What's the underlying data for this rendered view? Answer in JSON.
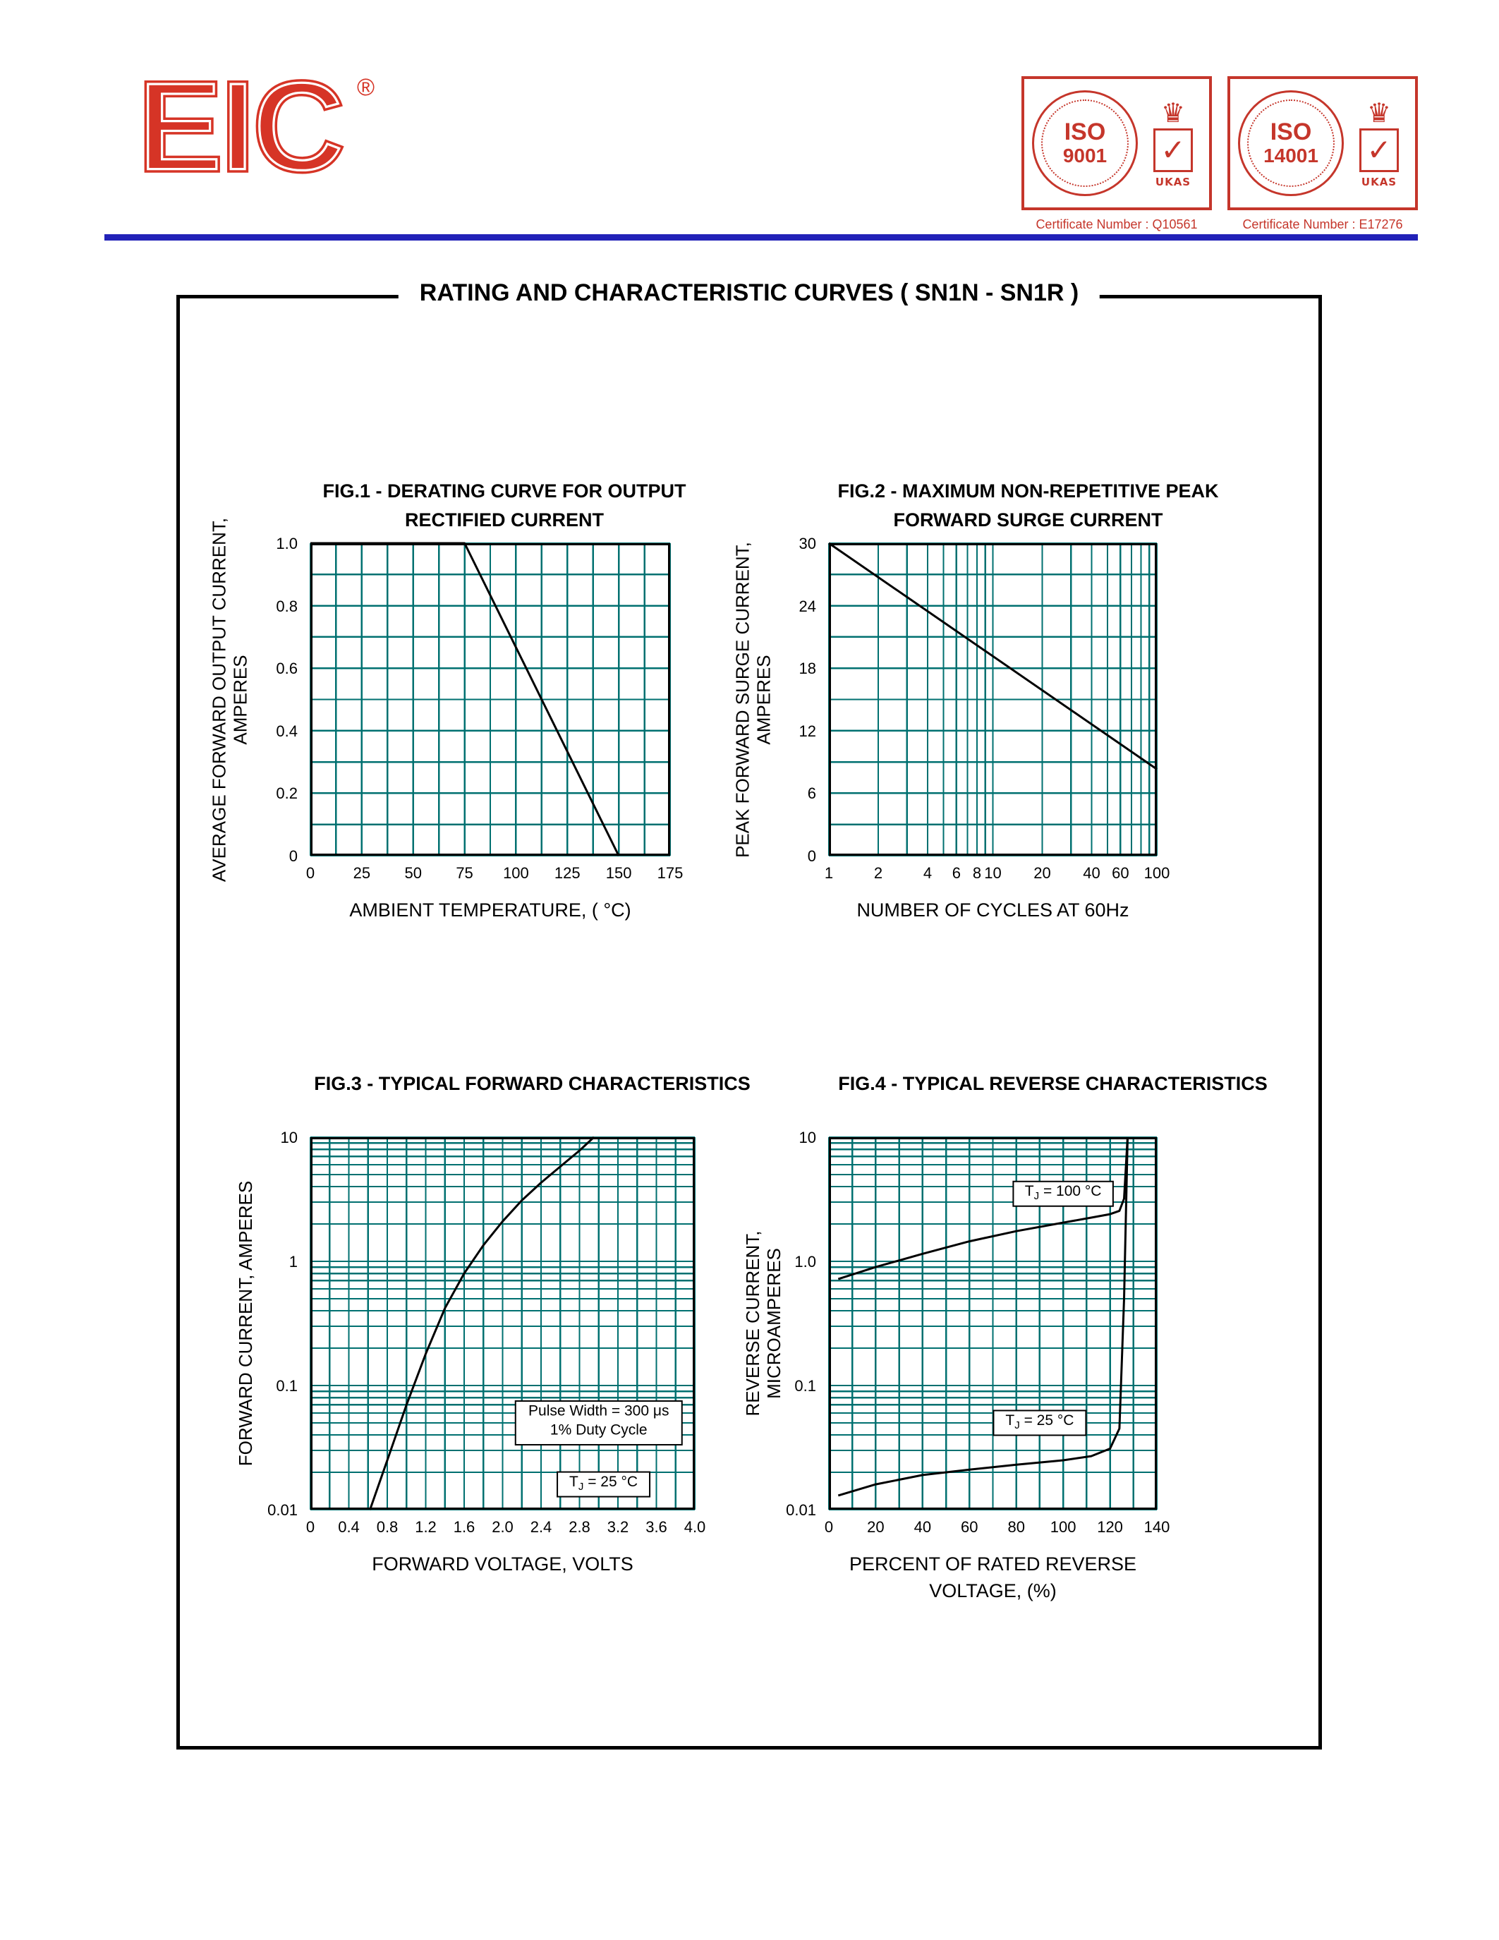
{
  "page": {
    "box_title": "RATING AND CHARACTERISTIC CURVES  ( SN1N - SN1R )"
  },
  "header": {
    "logo": "EIC",
    "registered_mark": "®",
    "icons": {
      "crown": "♛",
      "check": "✓"
    },
    "stamps": [
      {
        "iso_line1": "ISO",
        "iso_line2": "9001",
        "emblem": "UKAS",
        "caption": "Certificate Number : Q10561"
      },
      {
        "iso_line1": "ISO",
        "iso_line2": "14001",
        "emblem": "UKAS",
        "caption": "Certificate Number : E17276"
      }
    ]
  },
  "style": {
    "grid_color": "#007070",
    "line_color": "#000000",
    "frame_color": "#000000",
    "accent_red": "#c5362b",
    "rule_blue": "#2222b8"
  },
  "chart_data": [
    {
      "id": "fig1",
      "type": "line",
      "title_lines": [
        "FIG.1 - DERATING CURVE FOR OUTPUT",
        "RECTIFIED CURRENT"
      ],
      "xlabel_lines": [
        "AMBIENT TEMPERATURE, ( °C)"
      ],
      "ylabel_lines": [
        "AVERAGE FORWARD OUTPUT CURRENT,",
        "AMPERES"
      ],
      "x_scale": "linear",
      "y_scale": "linear",
      "xlim": [
        0,
        175
      ],
      "ylim": [
        0,
        1.0
      ],
      "x_ticks": {
        "values": [
          0,
          25,
          50,
          75,
          100,
          125,
          150,
          175
        ],
        "labels": [
          "0",
          "25",
          "50",
          "75",
          "100",
          "125",
          "150",
          "175"
        ]
      },
      "y_ticks": {
        "values": [
          0,
          0.2,
          0.4,
          0.6,
          0.8,
          1.0
        ],
        "labels": [
          "0",
          "0.2",
          "0.4",
          "0.6",
          "0.8",
          "1.0"
        ]
      },
      "x_minor_step": 12.5,
      "y_minor_step": 0.1,
      "grid": true,
      "legend": false,
      "series": [
        {
          "name": "derating-line",
          "points": [
            [
              0,
              1.0
            ],
            [
              75,
              1.0
            ],
            [
              150,
              0
            ]
          ]
        }
      ]
    },
    {
      "id": "fig2",
      "type": "line",
      "title_lines": [
        "FIG.2 - MAXIMUM NON-REPETITIVE PEAK",
        "FORWARD SURGE CURRENT"
      ],
      "xlabel_lines": [
        "NUMBER OF CYCLES AT 60Hz"
      ],
      "ylabel_lines": [
        "PEAK FORWARD SURGE CURRENT,",
        "AMPERES"
      ],
      "x_scale": "log",
      "y_scale": "linear",
      "xlim": [
        1,
        100
      ],
      "ylim": [
        0,
        30
      ],
      "x_ticks": {
        "values": [
          1,
          2,
          4,
          6,
          8,
          10,
          20,
          40,
          60,
          100
        ],
        "labels": [
          "1",
          "2",
          "4",
          "6",
          "8",
          "10",
          "20",
          "40",
          "60",
          "100"
        ]
      },
      "y_ticks": {
        "values": [
          0,
          6,
          12,
          18,
          24,
          30
        ],
        "labels": [
          "0",
          "6",
          "12",
          "18",
          "24",
          "30"
        ]
      },
      "y_minor_step": 3,
      "grid": true,
      "legend": false,
      "series": [
        {
          "name": "surge-line",
          "points": [
            [
              1,
              30
            ],
            [
              100,
              8.3
            ]
          ]
        }
      ]
    },
    {
      "id": "fig3",
      "type": "line",
      "title_lines": [
        "FIG.3 - TYPICAL FORWARD CHARACTERISTICS"
      ],
      "xlabel_lines": [
        "FORWARD VOLTAGE, VOLTS"
      ],
      "ylabel_lines": [
        "FORWARD CURRENT, AMPERES"
      ],
      "x_scale": "linear",
      "y_scale": "log",
      "xlim": [
        0,
        4.0
      ],
      "ylim": [
        0.01,
        10
      ],
      "x_ticks": {
        "values": [
          0,
          0.4,
          0.8,
          1.2,
          1.6,
          2.0,
          2.4,
          2.8,
          3.2,
          3.6,
          4.0
        ],
        "labels": [
          "0",
          "0.4",
          "0.8",
          "1.2",
          "1.6",
          "2.0",
          "2.4",
          "2.8",
          "3.2",
          "3.6",
          "4.0"
        ]
      },
      "y_ticks": {
        "values": [
          0.01,
          0.1,
          1,
          10
        ],
        "labels": [
          "0.01",
          "0.1",
          "1",
          "10"
        ]
      },
      "x_minor_step": 0.2,
      "grid": true,
      "legend": false,
      "series": [
        {
          "name": "forward-voltage-curve",
          "points": [
            [
              0.62,
              0.01
            ],
            [
              0.8,
              0.025
            ],
            [
              1.0,
              0.07
            ],
            [
              1.2,
              0.18
            ],
            [
              1.4,
              0.42
            ],
            [
              1.6,
              0.8
            ],
            [
              1.8,
              1.35
            ],
            [
              2.0,
              2.1
            ],
            [
              2.2,
              3.1
            ],
            [
              2.4,
              4.3
            ],
            [
              2.6,
              5.8
            ],
            [
              2.8,
              7.8
            ],
            [
              2.95,
              10
            ]
          ]
        }
      ],
      "annotations": [
        {
          "lines": [
            "Pulse Width = 300 μs",
            "1% Duty Cycle"
          ],
          "x": 3.0,
          "y": 0.05,
          "boxed": true
        },
        {
          "lines": [
            "TJ = 25 °C"
          ],
          "x": 3.05,
          "y": 0.016,
          "boxed": true
        }
      ]
    },
    {
      "id": "fig4",
      "type": "line",
      "title_lines": [
        "FIG.4 - TYPICAL REVERSE CHARACTERISTICS"
      ],
      "xlabel_lines": [
        "PERCENT OF RATED REVERSE",
        "VOLTAGE, (%)"
      ],
      "ylabel_lines": [
        "REVERSE CURRENT,",
        "MICROAMPERES"
      ],
      "x_scale": "linear",
      "y_scale": "log",
      "xlim": [
        0,
        140
      ],
      "ylim": [
        0.01,
        10
      ],
      "x_ticks": {
        "values": [
          0,
          20,
          40,
          60,
          80,
          100,
          120,
          140
        ],
        "labels": [
          "0",
          "20",
          "40",
          "60",
          "80",
          "100",
          "120",
          "140"
        ]
      },
      "y_ticks": {
        "values": [
          0.01,
          0.1,
          1,
          10
        ],
        "labels": [
          "0.01",
          "0.1",
          "1.0",
          "10"
        ]
      },
      "x_minor_step": 10,
      "grid": true,
      "legend": false,
      "series": [
        {
          "name": "tj-100c-curve",
          "points": [
            [
              4,
              0.72
            ],
            [
              20,
              0.9
            ],
            [
              40,
              1.15
            ],
            [
              60,
              1.45
            ],
            [
              80,
              1.75
            ],
            [
              100,
              2.05
            ],
            [
              112,
              2.25
            ],
            [
              120,
              2.4
            ],
            [
              124,
              2.55
            ],
            [
              126,
              3.2
            ],
            [
              127.5,
              10
            ]
          ]
        },
        {
          "name": "tj-25c-curve",
          "points": [
            [
              4,
              0.013
            ],
            [
              20,
              0.016
            ],
            [
              40,
              0.019
            ],
            [
              60,
              0.021
            ],
            [
              80,
              0.023
            ],
            [
              100,
              0.025
            ],
            [
              112,
              0.027
            ],
            [
              120,
              0.031
            ],
            [
              124,
              0.045
            ],
            [
              126,
              0.5
            ],
            [
              127.5,
              10
            ]
          ]
        }
      ],
      "annotations": [
        {
          "lines": [
            "TJ = 100 °C"
          ],
          "x": 100,
          "y": 3.5,
          "boxed": true
        },
        {
          "lines": [
            "TJ = 25 °C"
          ],
          "x": 90,
          "y": 0.05,
          "boxed": true
        }
      ]
    }
  ]
}
